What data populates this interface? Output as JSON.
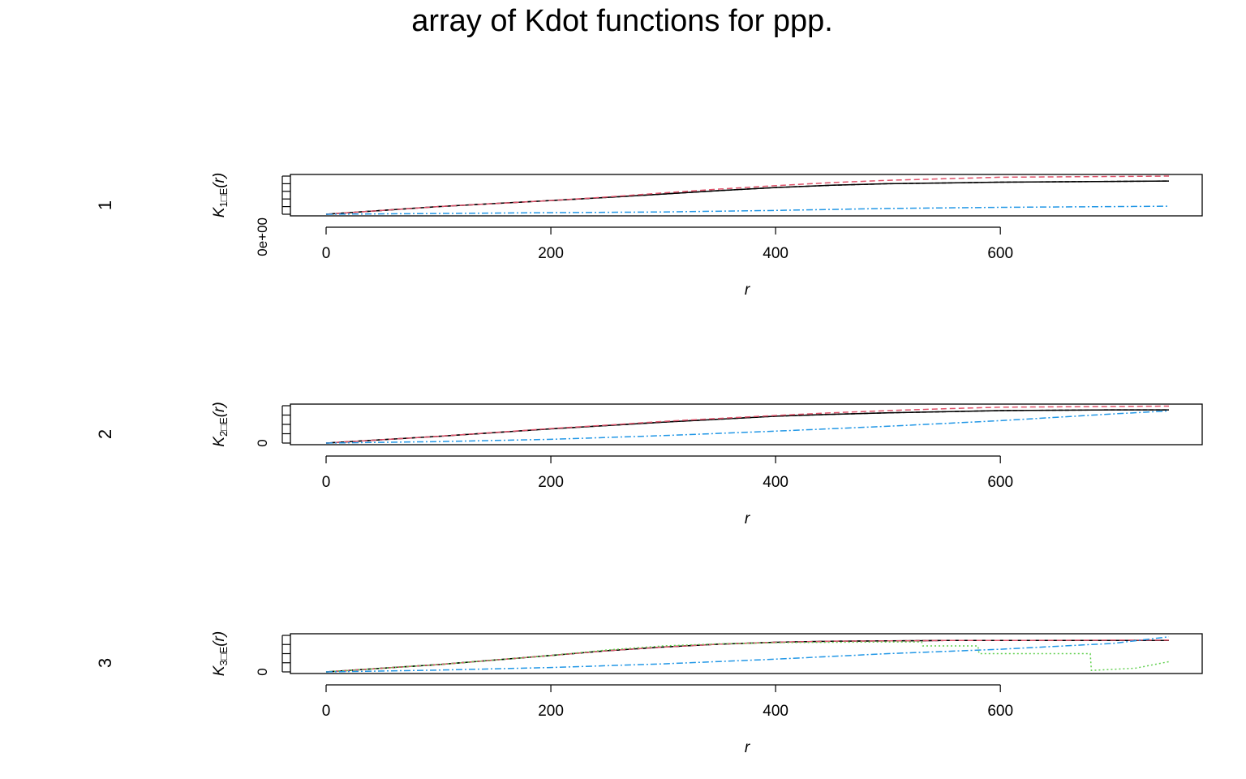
{
  "title": "array of Kdot functions for ppp.",
  "chart_data": [
    {
      "type": "line",
      "row_label": "1",
      "ylabel": "K_{1□E}(r)",
      "ylabel_main": "K",
      "ylabel_sub": "1□E",
      "ylabel_arg": "(r)",
      "xlabel": "r",
      "xlim": [
        0,
        750
      ],
      "ylim": [
        0,
        1
      ],
      "x_ticks": [
        0,
        200,
        400,
        600
      ],
      "y_tick_labels": [
        "0e+00"
      ],
      "series": [
        {
          "color": "#000000",
          "dash": "none",
          "x": [
            0,
            100,
            200,
            250,
            300,
            350,
            400,
            450,
            500,
            550,
            600,
            700,
            750
          ],
          "y": [
            0,
            0.2,
            0.36,
            0.44,
            0.53,
            0.62,
            0.7,
            0.76,
            0.8,
            0.82,
            0.84,
            0.86,
            0.87
          ]
        },
        {
          "color": "#000000",
          "dash": "5,3",
          "x": [
            0,
            100,
            200,
            250,
            300,
            350,
            400,
            450,
            500,
            550,
            600,
            700,
            750
          ],
          "y": [
            0,
            0.2,
            0.36,
            0.44,
            0.53,
            0.62,
            0.7,
            0.76,
            0.8,
            0.82,
            0.84,
            0.86,
            0.87
          ]
        },
        {
          "color": "#df536b",
          "dash": "7,4",
          "x": [
            0,
            100,
            200,
            250,
            300,
            350,
            400,
            450,
            500,
            550,
            600,
            700,
            750
          ],
          "y": [
            0,
            0.2,
            0.36,
            0.45,
            0.56,
            0.66,
            0.75,
            0.83,
            0.89,
            0.93,
            0.97,
            0.99,
            1.0
          ]
        },
        {
          "color": "#2297e6",
          "dash": "8,3,2,3",
          "x": [
            0,
            100,
            200,
            300,
            400,
            500,
            600,
            700,
            750
          ],
          "y": [
            0,
            0.02,
            0.04,
            0.06,
            0.1,
            0.15,
            0.18,
            0.2,
            0.21
          ]
        }
      ]
    },
    {
      "type": "line",
      "row_label": "2",
      "ylabel": "K_{2□E}(r)",
      "ylabel_main": "K",
      "ylabel_sub": "2□E",
      "ylabel_arg": "(r)",
      "xlabel": "r",
      "xlim": [
        0,
        750
      ],
      "ylim": [
        0,
        1
      ],
      "x_ticks": [
        0,
        200,
        400,
        600
      ],
      "y_tick_labels": [
        "0"
      ],
      "series": [
        {
          "color": "#000000",
          "dash": "none",
          "x": [
            0,
            100,
            200,
            250,
            300,
            350,
            400,
            450,
            500,
            550,
            600,
            700,
            750
          ],
          "y": [
            0,
            0.18,
            0.38,
            0.47,
            0.56,
            0.64,
            0.72,
            0.77,
            0.81,
            0.84,
            0.87,
            0.89,
            0.89
          ]
        },
        {
          "color": "#000000",
          "dash": "5,3",
          "x": [
            0,
            100,
            200,
            250,
            300,
            350,
            400,
            450,
            500,
            550,
            600,
            700,
            750
          ],
          "y": [
            0,
            0.18,
            0.38,
            0.47,
            0.56,
            0.64,
            0.72,
            0.77,
            0.81,
            0.84,
            0.87,
            0.89,
            0.89
          ]
        },
        {
          "color": "#df536b",
          "dash": "7,4",
          "x": [
            0,
            100,
            200,
            250,
            300,
            350,
            400,
            450,
            500,
            550,
            600,
            700,
            750
          ],
          "y": [
            0,
            0.18,
            0.39,
            0.48,
            0.58,
            0.66,
            0.74,
            0.81,
            0.87,
            0.92,
            0.96,
            0.98,
            0.99
          ]
        },
        {
          "color": "#2297e6",
          "dash": "8,3,2,3",
          "x": [
            0,
            100,
            200,
            300,
            400,
            500,
            600,
            700,
            750
          ],
          "y": [
            0,
            0.04,
            0.1,
            0.2,
            0.32,
            0.45,
            0.6,
            0.78,
            0.86
          ]
        }
      ]
    },
    {
      "type": "line",
      "row_label": "3",
      "ylabel": "K_{3□E}(r)",
      "ylabel_main": "K",
      "ylabel_sub": "3□E",
      "ylabel_arg": "(r)",
      "xlabel": "r",
      "xlim": [
        0,
        750
      ],
      "ylim": [
        0,
        1
      ],
      "x_ticks": [
        0,
        200,
        400,
        600
      ],
      "y_tick_labels": [
        "0"
      ],
      "series": [
        {
          "color": "#000000",
          "dash": "none",
          "x": [
            0,
            100,
            200,
            250,
            300,
            350,
            400,
            450,
            500,
            550,
            600,
            700,
            750
          ],
          "y": [
            0,
            0.2,
            0.45,
            0.58,
            0.68,
            0.76,
            0.81,
            0.84,
            0.85,
            0.86,
            0.86,
            0.86,
            0.86
          ]
        },
        {
          "color": "#000000",
          "dash": "5,3",
          "x": [
            0,
            100,
            200,
            250,
            300,
            350,
            400,
            450,
            500,
            550,
            600,
            700,
            750
          ],
          "y": [
            0,
            0.2,
            0.45,
            0.58,
            0.68,
            0.76,
            0.81,
            0.84,
            0.85,
            0.86,
            0.86,
            0.86,
            0.86
          ]
        },
        {
          "color": "#df536b",
          "dash": "7,4",
          "x": [
            0,
            100,
            200,
            250,
            300,
            350,
            400,
            450,
            500,
            550,
            600,
            700,
            750
          ],
          "y": [
            0,
            0.2,
            0.45,
            0.58,
            0.68,
            0.76,
            0.81,
            0.84,
            0.85,
            0.86,
            0.86,
            0.87,
            0.87
          ]
        },
        {
          "color": "#61d04f",
          "dash": "2,3",
          "x": [
            0,
            100,
            200,
            250,
            300,
            350,
            400,
            450,
            500,
            530,
            531,
            580,
            581,
            675,
            676,
            680,
            681,
            720,
            750
          ],
          "y": [
            0,
            0.2,
            0.45,
            0.6,
            0.71,
            0.77,
            0.8,
            0.81,
            0.82,
            0.82,
            0.71,
            0.71,
            0.5,
            0.5,
            0.5,
            0.5,
            0.04,
            0.1,
            0.28
          ]
        },
        {
          "color": "#2297e6",
          "dash": "8,3,2,3",
          "x": [
            0,
            100,
            200,
            300,
            400,
            500,
            600,
            700,
            750
          ],
          "y": [
            0,
            0.05,
            0.12,
            0.22,
            0.35,
            0.5,
            0.62,
            0.78,
            0.96
          ]
        }
      ]
    }
  ]
}
